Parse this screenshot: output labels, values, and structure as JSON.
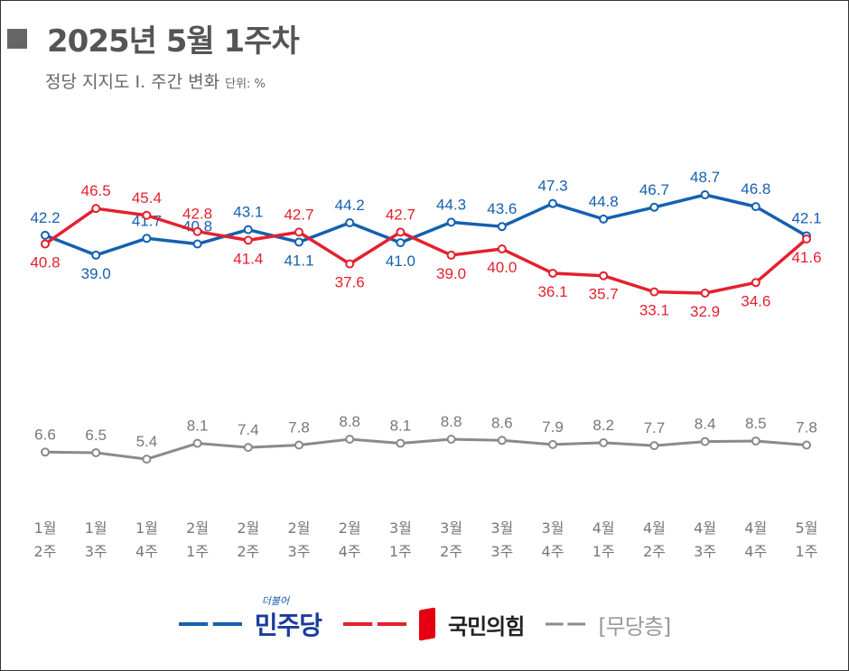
{
  "header": {
    "title": "2025년 5월 1주차",
    "subtitle": "정당 지지도 Ⅰ. 주간 변화",
    "unit": "단위: %"
  },
  "chart_data": {
    "type": "line",
    "categories": [
      [
        "1월",
        "2주"
      ],
      [
        "1월",
        "3주"
      ],
      [
        "1월",
        "4주"
      ],
      [
        "2월",
        "1주"
      ],
      [
        "2월",
        "2주"
      ],
      [
        "2월",
        "3주"
      ],
      [
        "2월",
        "4주"
      ],
      [
        "3월",
        "1주"
      ],
      [
        "3월",
        "2주"
      ],
      [
        "3월",
        "3주"
      ],
      [
        "3월",
        "4주"
      ],
      [
        "4월",
        "1주"
      ],
      [
        "4월",
        "2주"
      ],
      [
        "4월",
        "3주"
      ],
      [
        "4월",
        "4주"
      ],
      [
        "5월",
        "1주"
      ]
    ],
    "series": [
      {
        "name": "민주당",
        "color": "#1560b0",
        "values": [
          42.2,
          39.0,
          41.7,
          40.8,
          43.1,
          41.1,
          44.2,
          41.0,
          44.3,
          43.6,
          47.3,
          44.8,
          46.7,
          48.7,
          46.8,
          42.1
        ]
      },
      {
        "name": "국민의힘",
        "color": "#e5202e",
        "values": [
          40.8,
          46.5,
          45.4,
          42.8,
          41.4,
          42.7,
          37.6,
          42.7,
          39.0,
          40.0,
          36.1,
          35.7,
          33.1,
          32.9,
          34.6,
          41.6
        ]
      },
      {
        "name": "[무당층]",
        "color": "#8a8a8a",
        "values": [
          6.6,
          6.5,
          5.4,
          8.1,
          7.4,
          7.8,
          8.8,
          8.1,
          8.8,
          8.6,
          7.9,
          8.2,
          7.7,
          8.4,
          8.5,
          7.8
        ]
      }
    ],
    "legend": "bottom",
    "grid": false
  },
  "legend": {
    "minjoo_tagline": "더불어"
  }
}
